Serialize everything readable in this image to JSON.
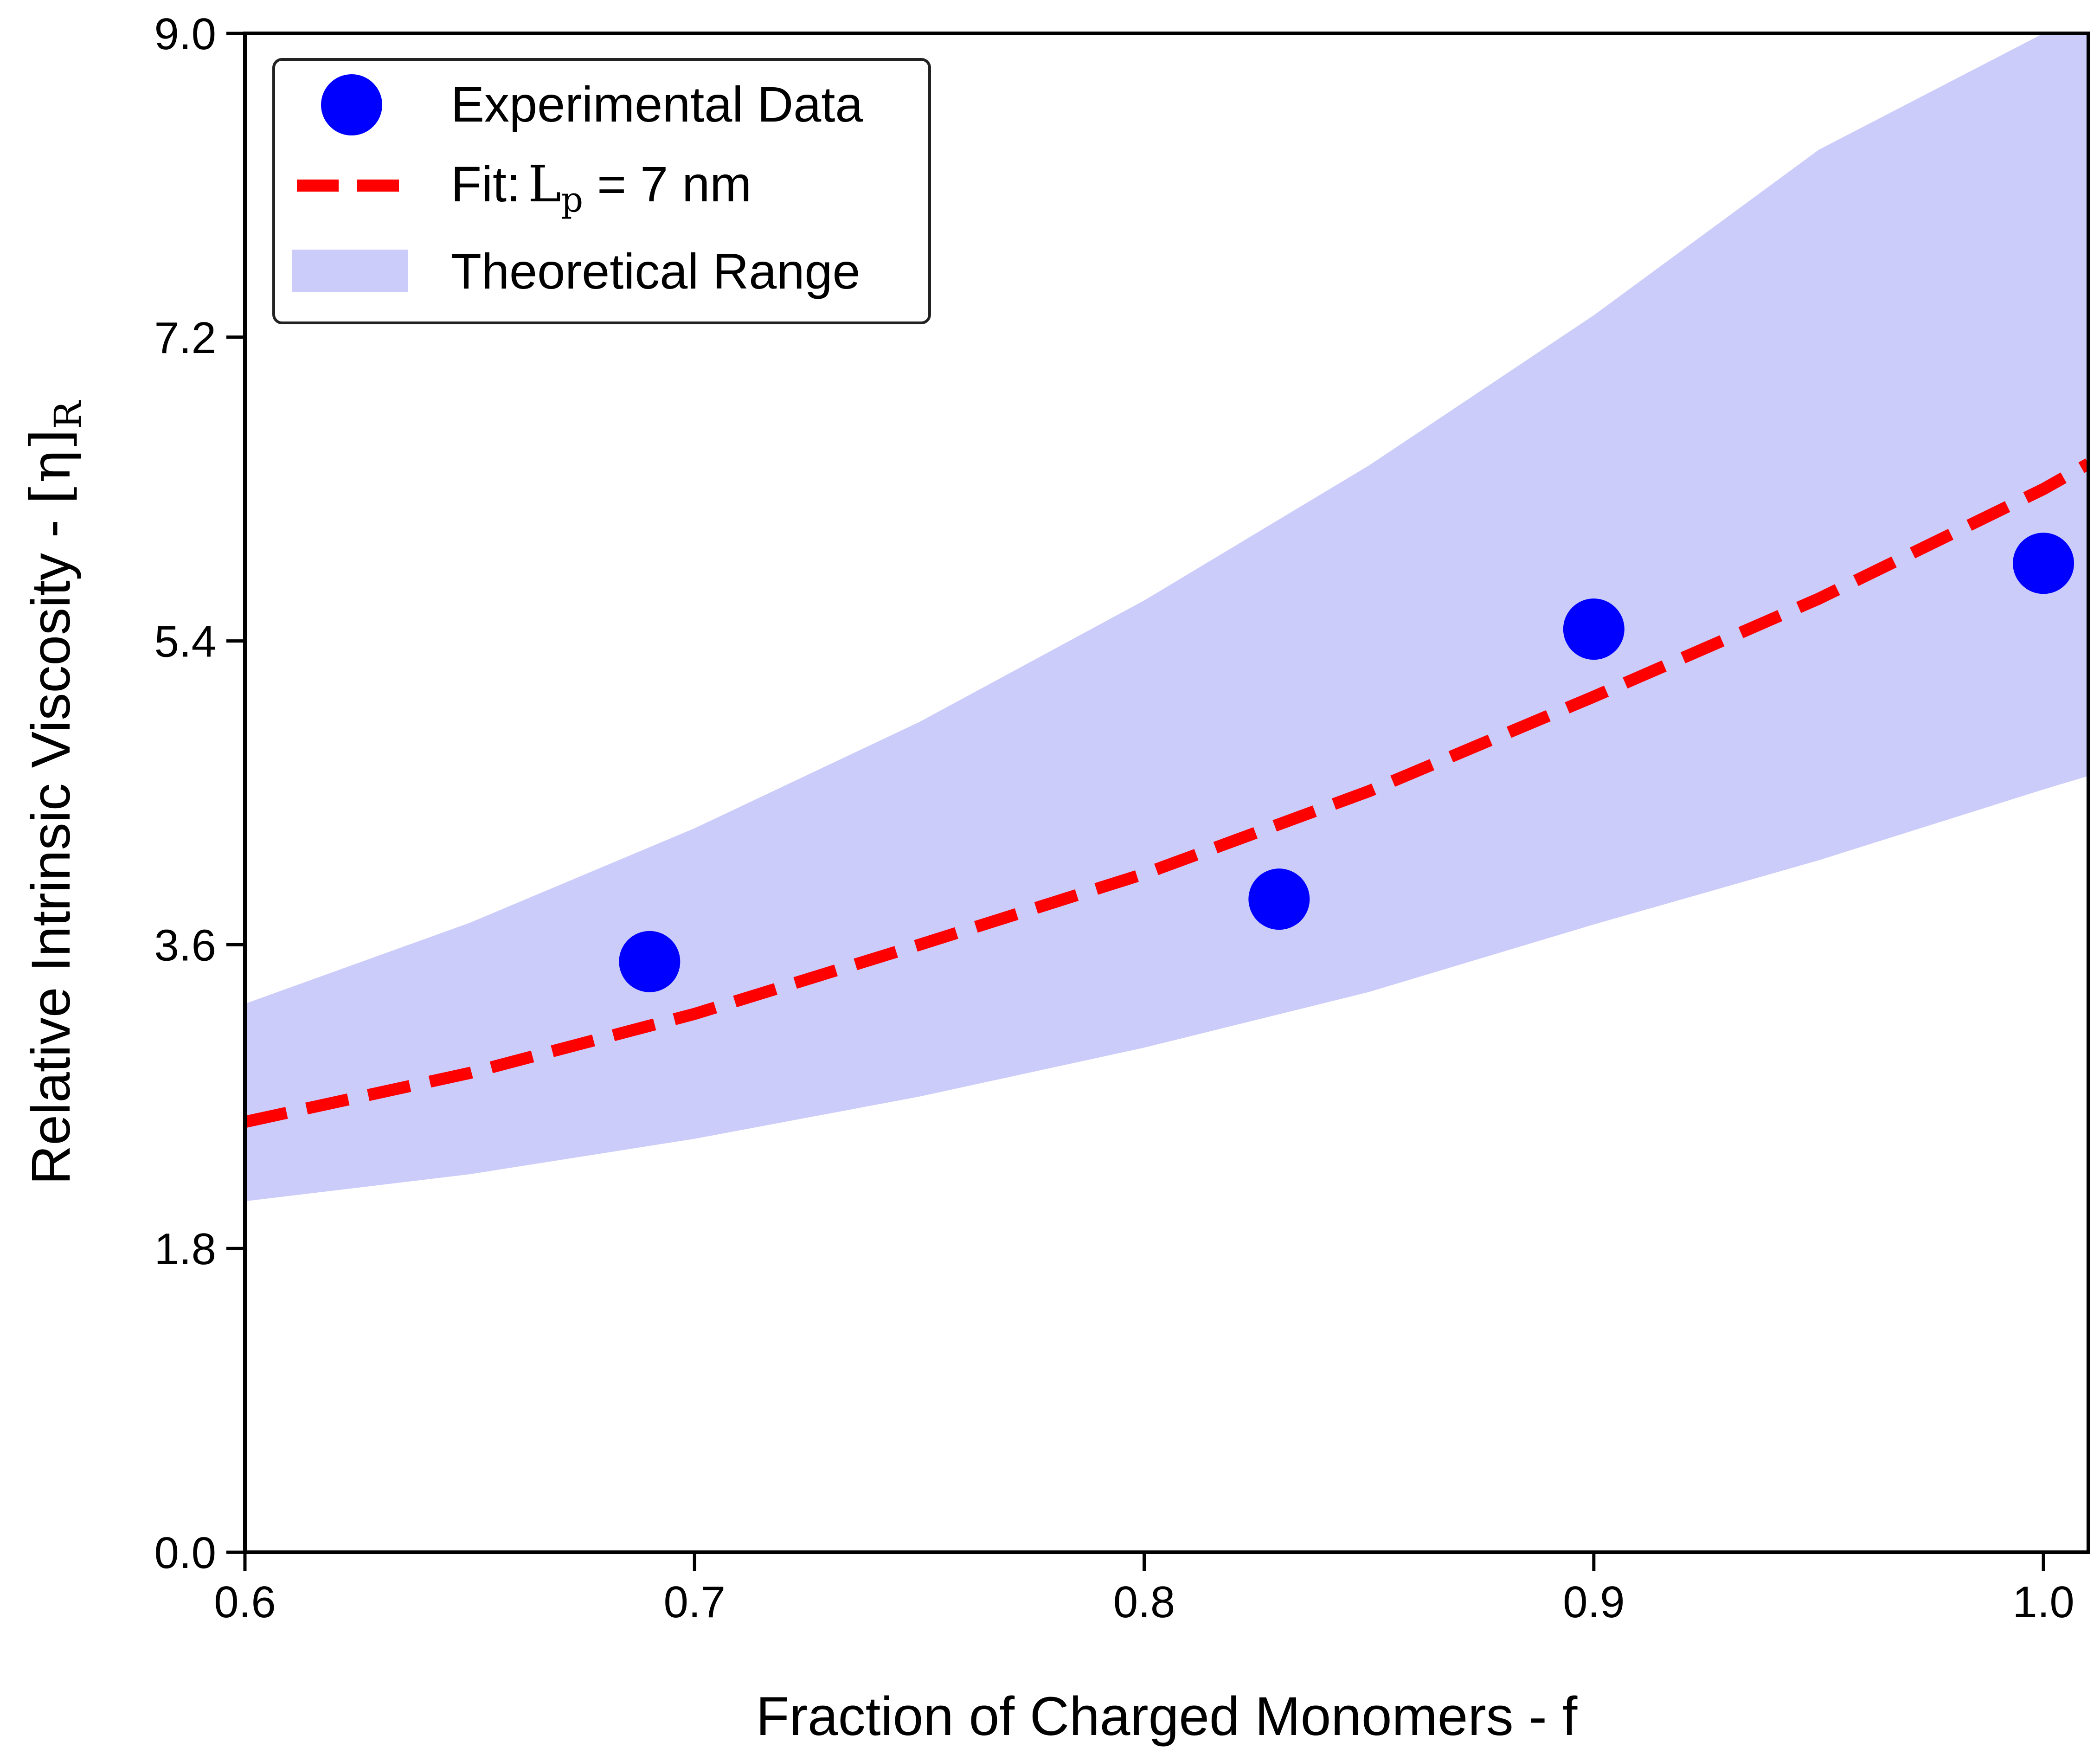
{
  "chart_data": {
    "type": "scatter",
    "xlabel": "Fraction of Charged Monomers - f",
    "ylabel": {
      "main": "Relative Intrinsic Viscosity - ",
      "symbol": "[η]",
      "subscript": "R"
    },
    "xlim": [
      0.6,
      1.01
    ],
    "ylim": [
      0.0,
      9.0
    ],
    "x_ticks": [
      0.6,
      0.7,
      0.8,
      0.9,
      1.0
    ],
    "x_tick_labels": [
      "0.6",
      "0.7",
      "0.8",
      "0.9",
      "1.0"
    ],
    "y_ticks": [
      0.0,
      1.8,
      3.6,
      5.4,
      7.2,
      9.0
    ],
    "y_tick_labels": [
      "0.0",
      "1.8",
      "3.6",
      "5.4",
      "7.2",
      "9.0"
    ],
    "grid": false,
    "legend_position": "top-left",
    "series": [
      {
        "name": "Experimental Data",
        "kind": "scatter",
        "color": "#0000ff",
        "x": [
          0.69,
          0.83,
          0.9,
          1.0
        ],
        "y": [
          3.5,
          3.87,
          5.47,
          5.86
        ]
      },
      {
        "name": "Fit:",
        "name_math": "L",
        "name_math_sub": "p",
        "name_suffix": " = 7 nm",
        "kind": "line",
        "style": "dashed",
        "color": "#ff0000",
        "x": [
          0.6,
          0.65,
          0.7,
          0.75,
          0.8,
          0.85,
          0.9,
          0.95,
          1.0,
          1.01
        ],
        "y": [
          2.55,
          2.84,
          3.19,
          3.6,
          4.02,
          4.51,
          5.07,
          5.65,
          6.3,
          6.45
        ]
      },
      {
        "name": "Theoretical Range",
        "kind": "band",
        "color": "#ccccfa",
        "x": [
          0.6,
          0.65,
          0.7,
          0.75,
          0.8,
          0.85,
          0.9,
          0.95,
          1.0,
          1.01
        ],
        "y_lower": [
          2.08,
          2.24,
          2.45,
          2.7,
          2.99,
          3.32,
          3.72,
          4.1,
          4.52,
          4.6
        ],
        "y_upper": [
          3.25,
          3.73,
          4.29,
          4.92,
          5.64,
          6.44,
          7.33,
          8.31,
          9.0,
          9.0
        ]
      }
    ]
  }
}
